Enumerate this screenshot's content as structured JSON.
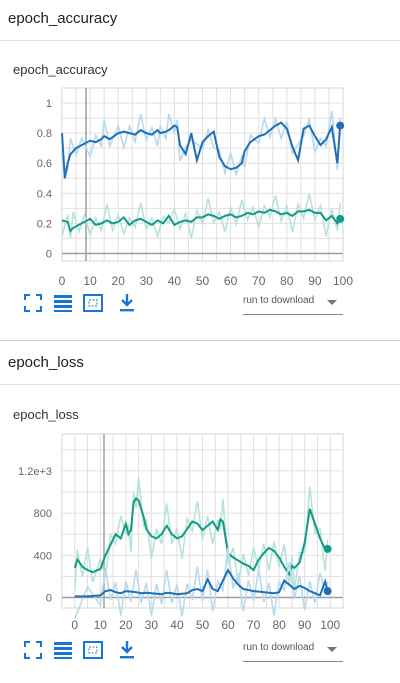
{
  "sections": [
    {
      "header": "epoch_accuracy",
      "card_title": "epoch_accuracy",
      "run_select": {
        "placeholder": "run to download"
      },
      "toolbar": [
        "fit-domain-icon",
        "data-table-icon",
        "zoom-box-icon",
        "download-icon"
      ]
    },
    {
      "header": "epoch_loss",
      "card_title": "epoch_loss",
      "run_select": {
        "placeholder": "run to download"
      },
      "toolbar": [
        "fit-domain-icon",
        "data-table-icon",
        "zoom-box-icon",
        "download-icon"
      ]
    }
  ],
  "colors": {
    "blue": "#1f6fb5",
    "teal": "#139c85",
    "blue_light": "#b9d9ee",
    "teal_light": "#b8e3da",
    "grid": "#e0e0e0"
  },
  "chart_data": [
    {
      "type": "line",
      "xlim": [
        0,
        100
      ],
      "ylim": [
        -0.05,
        1.1
      ],
      "x_ticks": [
        0,
        10,
        20,
        30,
        40,
        50,
        60,
        70,
        80,
        90,
        100
      ],
      "y_ticks": [
        0,
        0.2,
        0.4,
        0.6,
        0.8,
        1
      ],
      "y_tick_labels": [
        "0",
        "0.2",
        "0.4",
        "0.6",
        "0.8",
        "1"
      ],
      "grid": true,
      "series": [
        {
          "color": "blue",
          "x": [
            0,
            1,
            2,
            3,
            5,
            7,
            10,
            12,
            14,
            15,
            17,
            20,
            22,
            24,
            26,
            28,
            30,
            32,
            34,
            35,
            37,
            38,
            40,
            41,
            42,
            44,
            46,
            48,
            50,
            52,
            54,
            56,
            58,
            60,
            62,
            64,
            65,
            67,
            70,
            72,
            74,
            76,
            78,
            80,
            82,
            84,
            86,
            88,
            90,
            92,
            94,
            96,
            98,
            99
          ],
          "y": [
            0.8,
            0.5,
            0.6,
            0.66,
            0.7,
            0.72,
            0.75,
            0.74,
            0.76,
            0.78,
            0.76,
            0.8,
            0.81,
            0.8,
            0.79,
            0.82,
            0.8,
            0.79,
            0.82,
            0.8,
            0.81,
            0.82,
            0.85,
            0.84,
            0.72,
            0.66,
            0.8,
            0.62,
            0.74,
            0.78,
            0.81,
            0.64,
            0.58,
            0.56,
            0.57,
            0.6,
            0.68,
            0.74,
            0.78,
            0.79,
            0.82,
            0.85,
            0.87,
            0.83,
            0.71,
            0.62,
            0.83,
            0.85,
            0.78,
            0.72,
            0.76,
            0.84,
            0.6,
            0.85
          ]
        },
        {
          "color": "teal",
          "x": [
            0,
            2,
            3,
            4,
            6,
            8,
            10,
            12,
            14,
            16,
            18,
            20,
            22,
            24,
            26,
            28,
            30,
            32,
            34,
            36,
            38,
            40,
            42,
            44,
            46,
            48,
            50,
            52,
            54,
            56,
            58,
            60,
            62,
            64,
            66,
            68,
            70,
            72,
            74,
            76,
            78,
            80,
            82,
            84,
            86,
            88,
            90,
            92,
            94,
            96,
            98,
            99
          ],
          "y": [
            0.22,
            0.21,
            0.15,
            0.17,
            0.19,
            0.21,
            0.23,
            0.19,
            0.2,
            0.22,
            0.2,
            0.21,
            0.24,
            0.19,
            0.22,
            0.23,
            0.21,
            0.19,
            0.22,
            0.2,
            0.25,
            0.19,
            0.21,
            0.22,
            0.21,
            0.24,
            0.24,
            0.26,
            0.25,
            0.23,
            0.25,
            0.26,
            0.24,
            0.25,
            0.27,
            0.26,
            0.28,
            0.27,
            0.29,
            0.28,
            0.26,
            0.27,
            0.25,
            0.28,
            0.28,
            0.29,
            0.27,
            0.27,
            0.22,
            0.25,
            0.2,
            0.23
          ]
        }
      ]
    },
    {
      "type": "line",
      "xlim": [
        -5,
        105
      ],
      "ylim": [
        -100,
        1550
      ],
      "x_ticks": [
        0,
        10,
        20,
        30,
        40,
        50,
        60,
        70,
        80,
        90,
        100
      ],
      "y_ticks": [
        0,
        400,
        800,
        1200
      ],
      "y_tick_labels": [
        "0",
        "400",
        "800",
        "1.2e+3"
      ],
      "grid": true,
      "series": [
        {
          "color": "teal",
          "x": [
            0,
            1,
            3,
            5,
            7,
            10,
            12,
            14,
            16,
            18,
            20,
            21,
            22,
            23,
            24,
            25,
            27,
            28,
            30,
            32,
            34,
            36,
            38,
            40,
            42,
            44,
            46,
            48,
            50,
            52,
            54,
            56,
            57,
            58,
            60,
            62,
            64,
            66,
            68,
            70,
            72,
            74,
            76,
            78,
            80,
            82,
            84,
            85,
            86,
            88,
            90,
            92,
            94,
            96,
            98,
            99
          ],
          "y": [
            280,
            360,
            290,
            260,
            240,
            270,
            400,
            500,
            600,
            560,
            700,
            600,
            640,
            900,
            940,
            920,
            760,
            650,
            580,
            560,
            600,
            680,
            600,
            560,
            580,
            650,
            720,
            700,
            640,
            680,
            720,
            640,
            740,
            720,
            420,
            380,
            350,
            320,
            300,
            260,
            360,
            420,
            470,
            440,
            380,
            290,
            220,
            300,
            280,
            330,
            520,
            840,
            700,
            560,
            460,
            460
          ]
        },
        {
          "color": "blue",
          "x": [
            0,
            5,
            10,
            12,
            14,
            16,
            18,
            20,
            22,
            24,
            26,
            28,
            30,
            32,
            34,
            36,
            38,
            40,
            42,
            44,
            46,
            48,
            50,
            52,
            54,
            56,
            58,
            60,
            62,
            64,
            66,
            68,
            70,
            72,
            74,
            76,
            78,
            80,
            82,
            84,
            86,
            88,
            90,
            92,
            94,
            96,
            98,
            99
          ],
          "y": [
            10,
            10,
            20,
            60,
            70,
            50,
            40,
            60,
            55,
            50,
            40,
            45,
            40,
            35,
            30,
            45,
            40,
            30,
            35,
            40,
            70,
            80,
            60,
            170,
            80,
            60,
            160,
            260,
            180,
            120,
            80,
            70,
            60,
            55,
            50,
            45,
            40,
            50,
            160,
            120,
            80,
            110,
            90,
            60,
            40,
            20,
            150,
            60
          ]
        }
      ]
    }
  ]
}
